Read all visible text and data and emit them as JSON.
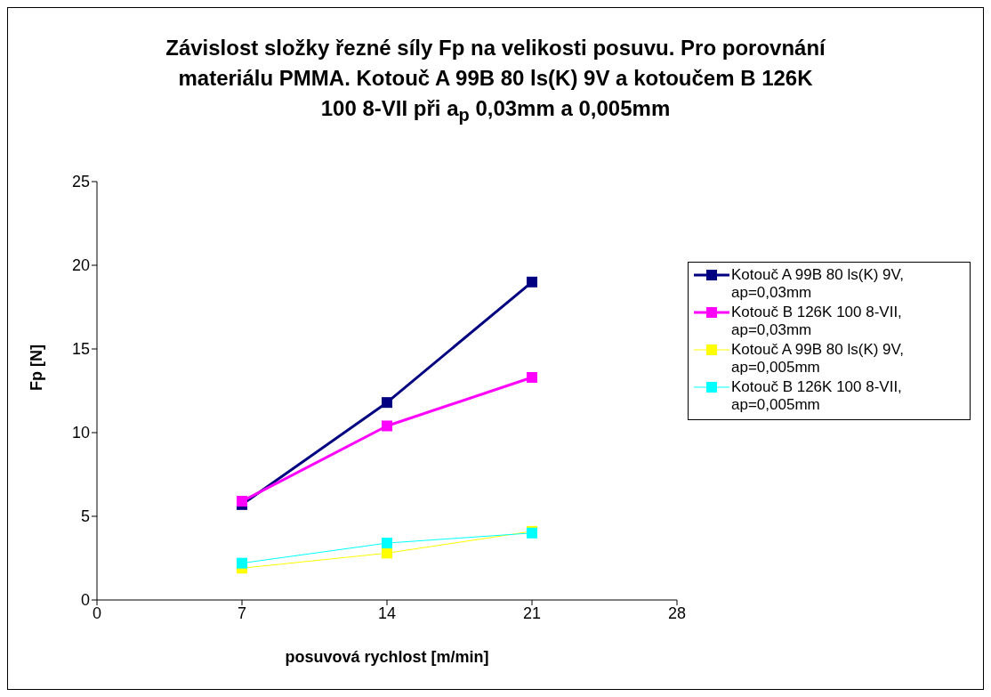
{
  "chart_data": {
    "type": "line",
    "title": "Závislost složky řezné síly Fp na velikosti posuvu. Pro porovnání materiálu PMMA. Kotouč A 99B 80 ls(K) 9V a kotoučem B 126K 100 8-VII při a$_{p}$ 0,03mm a 0,005mm",
    "xlabel": "posuvová rychlost [m/min]",
    "ylabel": "Fp [N]",
    "x": [
      7,
      14,
      21
    ],
    "series": [
      {
        "name": "Kotouč A 99B 80 ls(K) 9V, ap=0,03mm",
        "color": "#000080",
        "values": [
          5.7,
          11.8,
          19.0
        ]
      },
      {
        "name": "Kotouč B 126K 100 8-VII, ap=0,03mm",
        "color": "#ff00ff",
        "values": [
          5.9,
          10.4,
          13.3
        ]
      },
      {
        "name": "Kotouč A 99B 80 ls(K) 9V, ap=0,005mm",
        "color": "#ffff00",
        "values": [
          1.9,
          2.8,
          4.1
        ]
      },
      {
        "name": "Kotouč B 126K 100 8-VII, ap=0,005mm",
        "color": "#00ffff",
        "values": [
          2.2,
          3.4,
          4.0
        ]
      }
    ],
    "xlim": [
      0,
      28
    ],
    "xticks": [
      0,
      7,
      14,
      21,
      28
    ],
    "ylim": [
      0,
      25
    ],
    "yticks": [
      0,
      5,
      10,
      15,
      20,
      25
    ],
    "grid": false,
    "legend": "right",
    "marker": "square",
    "line_style": "solid"
  }
}
